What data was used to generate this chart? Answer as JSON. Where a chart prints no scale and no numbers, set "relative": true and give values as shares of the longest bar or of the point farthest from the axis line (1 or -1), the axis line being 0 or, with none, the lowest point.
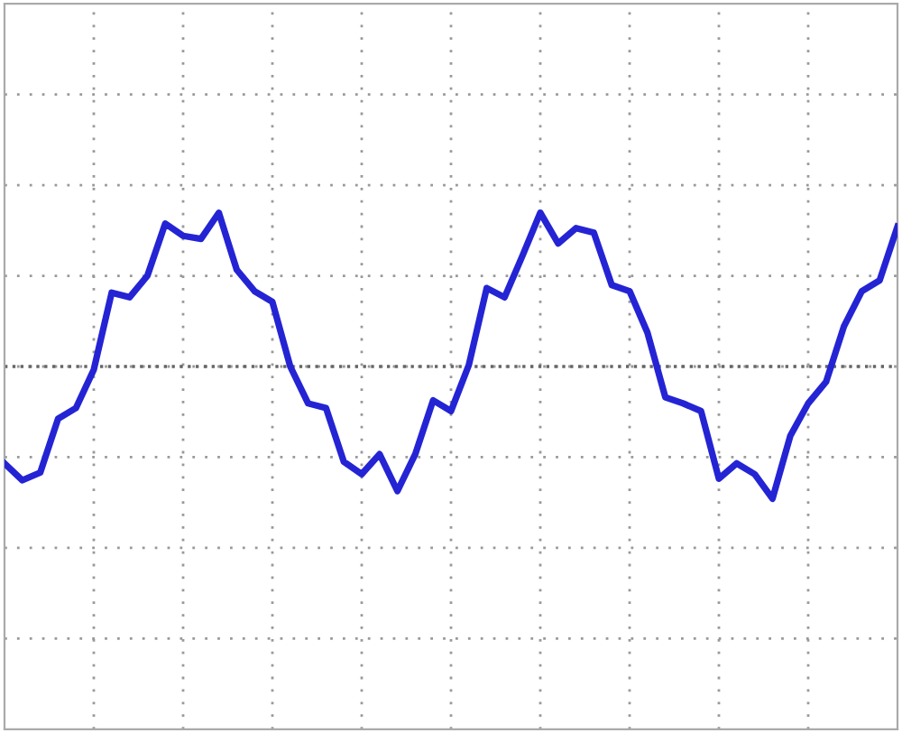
{
  "chart_data": {
    "type": "line",
    "relative": true,
    "categories": [
      null,
      null,
      null,
      null,
      null,
      null,
      null,
      null,
      null,
      null,
      null,
      null,
      null,
      null,
      null,
      null,
      null,
      null,
      null,
      null,
      null,
      null,
      null,
      null,
      null,
      null,
      null,
      null,
      null,
      null,
      null,
      null,
      null,
      null,
      null,
      null,
      null,
      null,
      null,
      null,
      null,
      null,
      null,
      null,
      null,
      null,
      null,
      null,
      null,
      null,
      null
    ],
    "grid": true,
    "marker": "none",
    "line_style": "solid",
    "ref_lines": [
      {
        "axis": "y",
        "value": 0,
        "color": "#666666",
        "line_style": "dotted"
      }
    ],
    "series": [
      {
        "color": "#2424d4",
        "values": [
          -0.63,
          -0.74,
          -0.69,
          -0.34,
          -0.27,
          -0.02,
          0.48,
          0.45,
          0.59,
          0.93,
          0.85,
          0.83,
          1.0,
          0.63,
          0.49,
          0.42,
          0,
          -0.24,
          -0.27,
          -0.62,
          -0.7,
          -0.57,
          -0.81,
          -0.57,
          -0.22,
          -0.29,
          0.01,
          0.51,
          0.45,
          0.72,
          1.0,
          0.8,
          0.9,
          0.87,
          0.53,
          0.49,
          0.22,
          -0.2,
          -0.24,
          -0.29,
          -0.73,
          -0.63,
          -0.7,
          -0.86,
          -0.45,
          -0.24,
          -0.1,
          0.26,
          0.49,
          0.56,
          0.91
        ]
      }
    ]
  }
}
